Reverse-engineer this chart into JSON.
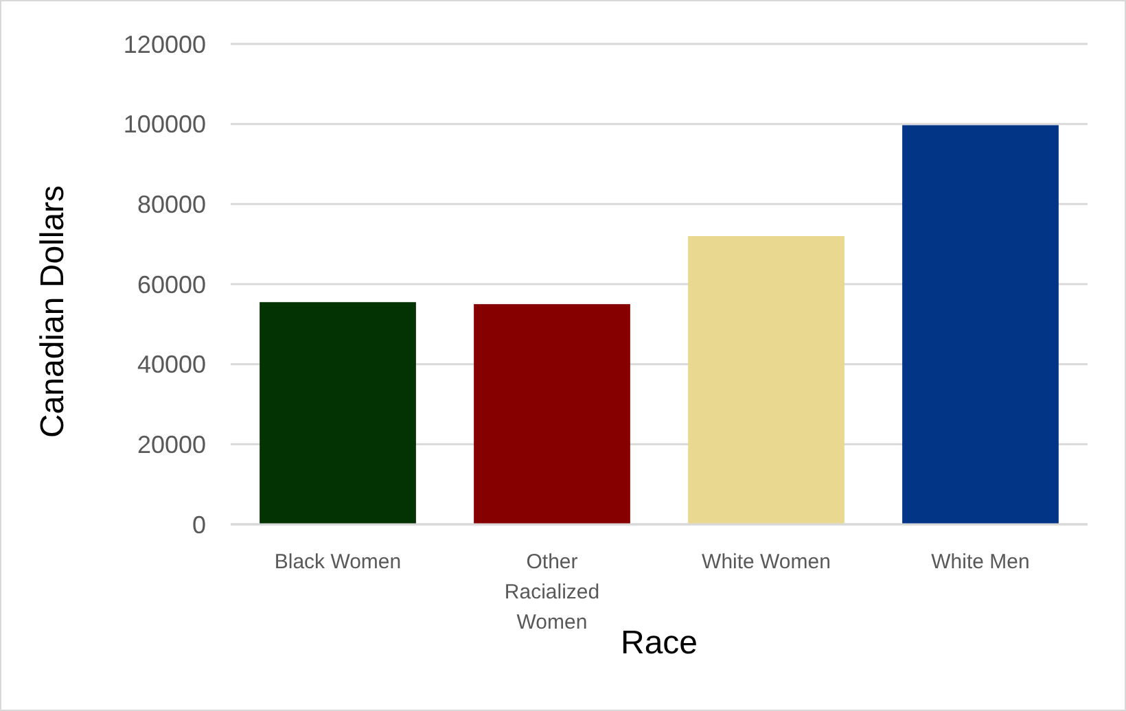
{
  "chart_data": {
    "type": "bar",
    "xlabel": "Race",
    "ylabel": "Canadian Dollars",
    "categories": [
      "Black Women",
      "Other Racialized Women",
      "White Women",
      "White Men"
    ],
    "values": [
      55500,
      55000,
      72000,
      99700
    ],
    "colors": [
      "#033303",
      "#870000",
      "#e8d890",
      "#033587"
    ],
    "ylim": [
      0,
      120000
    ],
    "yticks": [
      0,
      20000,
      40000,
      60000,
      80000,
      100000,
      120000
    ],
    "grid": "y"
  }
}
